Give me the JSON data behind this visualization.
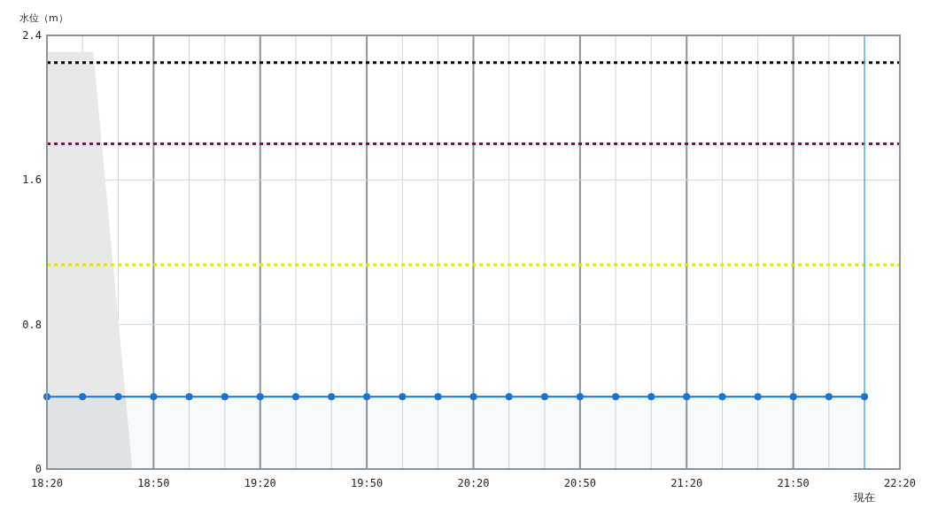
{
  "chart_data": {
    "type": "line",
    "ylabel": "水位（m）",
    "xlim": [
      18.333,
      22.333
    ],
    "ylim": [
      0,
      2.4
    ],
    "xticks": [
      {
        "value": 18.333,
        "label": "18:20"
      },
      {
        "value": 18.5,
        "label": null
      },
      {
        "value": 18.667,
        "label": null
      },
      {
        "value": 18.833,
        "label": "18:50"
      },
      {
        "value": 19,
        "label": null
      },
      {
        "value": 19.167,
        "label": null
      },
      {
        "value": 19.333,
        "label": "19:20"
      },
      {
        "value": 19.5,
        "label": null
      },
      {
        "value": 19.667,
        "label": null
      },
      {
        "value": 19.833,
        "label": "19:50"
      },
      {
        "value": 20,
        "label": null
      },
      {
        "value": 20.167,
        "label": null
      },
      {
        "value": 20.333,
        "label": "20:20"
      },
      {
        "value": 20.5,
        "label": null
      },
      {
        "value": 20.667,
        "label": null
      },
      {
        "value": 20.833,
        "label": "20:50"
      },
      {
        "value": 21,
        "label": null
      },
      {
        "value": 21.167,
        "label": null
      },
      {
        "value": 21.333,
        "label": "21:20"
      },
      {
        "value": 21.5,
        "label": null
      },
      {
        "value": 21.667,
        "label": null
      },
      {
        "value": 21.833,
        "label": "21:50"
      },
      {
        "value": 22,
        "label": null
      },
      {
        "value": 22.167,
        "label": null
      },
      {
        "value": 22.333,
        "label": "22:20"
      }
    ],
    "yticks": [
      0,
      0.8,
      1.6,
      2.4
    ],
    "grid": true,
    "series": [
      {
        "type": "area",
        "color": "#e8e8e8",
        "marker": "none",
        "x": [
          18.333,
          18.55,
          18.733
        ],
        "values": [
          2.31,
          2.31,
          0
        ]
      },
      {
        "type": "area",
        "color": "#1a73d0",
        "marker": "circle",
        "x": [
          18.333,
          18.5,
          18.667,
          18.833,
          19,
          19.167,
          19.333,
          19.5,
          19.667,
          19.833,
          20,
          20.167,
          20.333,
          20.5,
          20.667,
          20.833,
          21,
          21.167,
          21.333,
          21.5,
          21.667,
          21.833,
          22,
          22.167
        ],
        "values": [
          0.4,
          0.4,
          0.4,
          0.4,
          0.4,
          0.4,
          0.4,
          0.4,
          0.4,
          0.4,
          0.4,
          0.4,
          0.4,
          0.4,
          0.4,
          0.4,
          0.4,
          0.4,
          0.4,
          0.4,
          0.4,
          0.4,
          0.4,
          0.4
        ]
      }
    ],
    "ref_lines": [
      {
        "axis": "y",
        "value": 2.25,
        "color": "#000000",
        "line_style": "dotted"
      },
      {
        "axis": "y",
        "value": 1.8,
        "color": "#990055",
        "line_style": "dotted"
      },
      {
        "axis": "y",
        "value": 1.13,
        "color": "#e6e600",
        "line_style": "dotted"
      },
      {
        "axis": "x",
        "value": 22.167,
        "color": "#4fb8f0",
        "label": "現在"
      }
    ]
  }
}
